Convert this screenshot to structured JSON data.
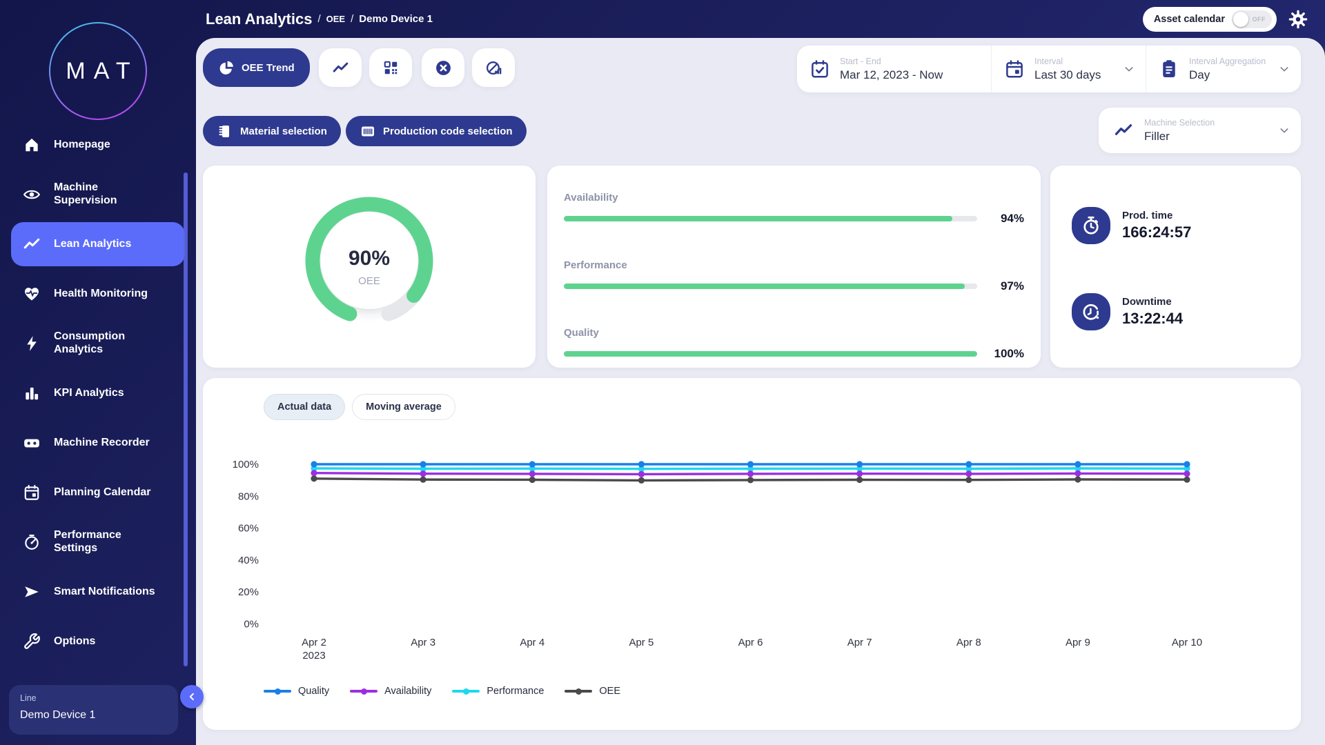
{
  "header": {
    "title": "Lean Analytics",
    "breadcrumb_1": "OEE",
    "breadcrumb_2": "Demo Device 1",
    "asset_calendar_label": "Asset calendar",
    "asset_calendar_state": "OFF",
    "gear_icon": "gear-icon"
  },
  "sidebar": {
    "logo": "MAT",
    "items": [
      {
        "label": "Homepage",
        "icon": "home-icon",
        "active": false
      },
      {
        "label": "Machine Supervision",
        "icon": "eye-icon",
        "active": false
      },
      {
        "label": "Lean Analytics",
        "icon": "trend-icon",
        "active": true
      },
      {
        "label": "Health Monitoring",
        "icon": "heart-pulse-icon",
        "active": false
      },
      {
        "label": "Consumption Analytics",
        "icon": "bolt-icon",
        "active": false
      },
      {
        "label": "KPI Analytics",
        "icon": "bar-chart-icon",
        "active": false
      },
      {
        "label": "Machine Recorder",
        "icon": "recorder-icon",
        "active": false
      },
      {
        "label": "Planning Calendar",
        "icon": "calendar-icon",
        "active": false
      },
      {
        "label": "Performance Settings",
        "icon": "gauge-icon",
        "active": false
      },
      {
        "label": "Smart Notifications",
        "icon": "send-icon",
        "active": false
      },
      {
        "label": "Options",
        "icon": "wrench-icon",
        "active": false
      }
    ],
    "device_panel": {
      "label": "Line",
      "value": "Demo Device 1"
    }
  },
  "toolbar": {
    "active_button": {
      "label": "OEE Trend",
      "icon": "pie-chart-icon"
    },
    "icon_buttons": [
      {
        "name": "trend-button",
        "icon": "trend-icon"
      },
      {
        "name": "qr-code-button",
        "icon": "qr-code-icon"
      },
      {
        "name": "stops-button",
        "icon": "x-circle-icon"
      },
      {
        "name": "losses-button",
        "icon": "pie-bars-icon"
      }
    ]
  },
  "filters": {
    "start_end_label": "Start - End",
    "start_end_value": "Mar 12, 2023 - Now",
    "start_end_icon": "calendar-check-icon",
    "interval_label": "Interval",
    "interval_value": "Last 30 days",
    "interval_icon": "calendar-icon",
    "aggregation_label": "Interval Aggregation",
    "aggregation_value": "Day",
    "aggregation_icon": "clipboard-icon",
    "material_button": "Material selection",
    "material_icon": "material-icon",
    "production_code_button": "Production code selection",
    "production_code_icon": "barcode-icon",
    "machine_selection_label": "Machine Selection",
    "machine_selection_value": "Filler",
    "machine_selection_icon": "trend-icon"
  },
  "kpis": {
    "gauge": {
      "value": "90%",
      "label": "OEE",
      "percent": 90,
      "color": "#5ed38f",
      "track_color": "#e6e7ea"
    },
    "bars": [
      {
        "label": "Availability",
        "value": "94%",
        "percent": 94
      },
      {
        "label": "Performance",
        "value": "97%",
        "percent": 97
      },
      {
        "label": "Quality",
        "value": "100%",
        "percent": 100
      }
    ],
    "times": [
      {
        "label": "Prod. time",
        "value": "166:24:57",
        "icon": "stopwatch-icon"
      },
      {
        "label": "Downtime",
        "value": "13:22:44",
        "icon": "clock-alert-icon"
      }
    ]
  },
  "chart": {
    "tabs": [
      "Actual data",
      "Moving average"
    ],
    "active_tab": "Actual data"
  },
  "chart_data": {
    "type": "line",
    "title": "",
    "xlabel": "",
    "ylabel": "",
    "categories": [
      "Apr 2",
      "Apr 3",
      "Apr 4",
      "Apr 5",
      "Apr 6",
      "Apr 7",
      "Apr 8",
      "Apr 9",
      "Apr 10"
    ],
    "first_category_sub": "2023",
    "y_ticks": [
      100,
      80,
      60,
      40,
      20,
      0
    ],
    "y_tick_labels": [
      "100%",
      "80%",
      "60%",
      "40%",
      "20%",
      "0%"
    ],
    "ylim": [
      0,
      100
    ],
    "grid": false,
    "legend_position": "bottom",
    "series": [
      {
        "name": "Quality",
        "color": "#1a7fe8",
        "values": [
          100,
          100,
          100,
          100,
          100,
          100,
          100,
          100,
          100
        ]
      },
      {
        "name": "Availability",
        "color": "#9b2fe0",
        "values": [
          94.5,
          94.1,
          94.0,
          93.8,
          94.0,
          94.1,
          94.0,
          94.2,
          94.1
        ]
      },
      {
        "name": "Performance",
        "color": "#1fd8ee",
        "values": [
          97.4,
          97.2,
          97.3,
          97.1,
          97.2,
          97.3,
          97.2,
          97.4,
          97.3
        ]
      },
      {
        "name": "OEE",
        "color": "#4a4a4a",
        "values": [
          91.0,
          90.4,
          90.3,
          89.9,
          90.1,
          90.3,
          90.2,
          90.5,
          90.4
        ]
      }
    ]
  },
  "colors": {
    "accent": "#5b6cfa",
    "primary": "#2e3a8f",
    "green": "#5ed38f",
    "content_bg": "#e9eaf4"
  }
}
